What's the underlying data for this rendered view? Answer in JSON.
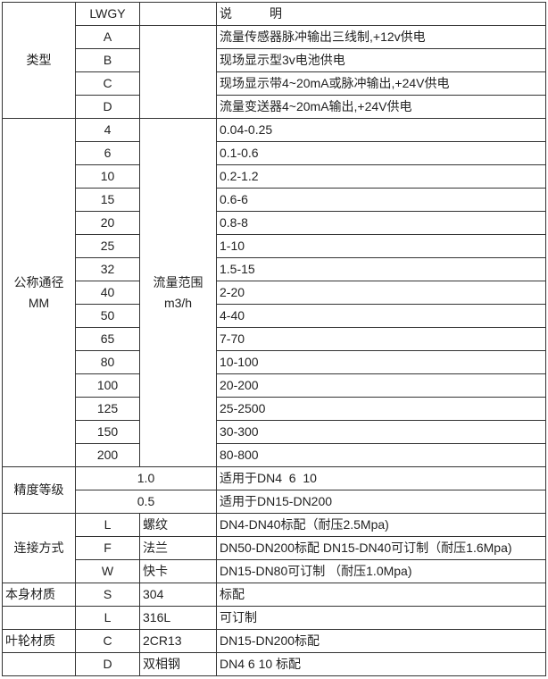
{
  "table": {
    "header": {
      "model": "LWGY",
      "desc": "说　　　明"
    },
    "type": {
      "label": "类型",
      "rows": [
        {
          "code": "A",
          "desc": "流量传感器脉冲输出三线制,+12v供电"
        },
        {
          "code": "B",
          "desc": "现场显示型3v电池供电"
        },
        {
          "code": "C",
          "desc": "现场显示带4~20mA或脉冲输出,+24V供电"
        },
        {
          "code": "D",
          "desc": "流量变送器4~20mA输出,+24V供电"
        }
      ]
    },
    "diameter": {
      "label": "公称通径\nMM",
      "flow_label": "流量范围\nm3/h",
      "rows": [
        {
          "dn": "4",
          "range": "0.04-0.25"
        },
        {
          "dn": "6",
          "range": "0.1-0.6"
        },
        {
          "dn": "10",
          "range": "0.2-1.2"
        },
        {
          "dn": "15",
          "range": "0.6-6"
        },
        {
          "dn": "20",
          "range": "0.8-8"
        },
        {
          "dn": "25",
          "range": "1-10"
        },
        {
          "dn": "32",
          "range": "1.5-15"
        },
        {
          "dn": "40",
          "range": "2-20"
        },
        {
          "dn": "50",
          "range": "4-40"
        },
        {
          "dn": "65",
          "range": "7-70"
        },
        {
          "dn": "80",
          "range": "10-100"
        },
        {
          "dn": "100",
          "range": "20-200"
        },
        {
          "dn": "125",
          "range": "25-2500"
        },
        {
          "dn": "150",
          "range": "30-300"
        },
        {
          "dn": "200",
          "range": "80-800"
        }
      ]
    },
    "accuracy": {
      "label": "精度等级",
      "rows": [
        {
          "value": "1.0",
          "desc": "适用于DN4  6  10"
        },
        {
          "value": "0.5",
          "desc": "适用于DN15-DN200"
        }
      ]
    },
    "connection": {
      "label": "连接方式",
      "rows": [
        {
          "code": "L",
          "name": "螺纹",
          "desc": "DN4-DN40标配（耐压2.5Mpa)"
        },
        {
          "code": "F",
          "name": "法兰",
          "desc": "DN50-DN200标配 DN15-DN40可订制（耐压1.6Mpa)"
        },
        {
          "code": "W",
          "name": "快卡",
          "desc": "DN15-DN80可订制 （耐压1.0Mpa)"
        }
      ]
    },
    "body_material": {
      "label": "本身材质",
      "rows": [
        {
          "code": "S",
          "name": "304",
          "desc": "标配"
        },
        {
          "code": "L",
          "name": "316L",
          "desc": "可订制"
        }
      ]
    },
    "impeller_material": {
      "label": "叶轮材质",
      "rows": [
        {
          "code": "C",
          "name": "2CR13",
          "desc": "DN15-DN200标配"
        },
        {
          "code": "D",
          "name": "双相钢",
          "desc": "DN4 6 10 标配"
        }
      ]
    }
  },
  "colors": {
    "border": "#333333",
    "text": "#222222",
    "background": "#ffffff"
  }
}
